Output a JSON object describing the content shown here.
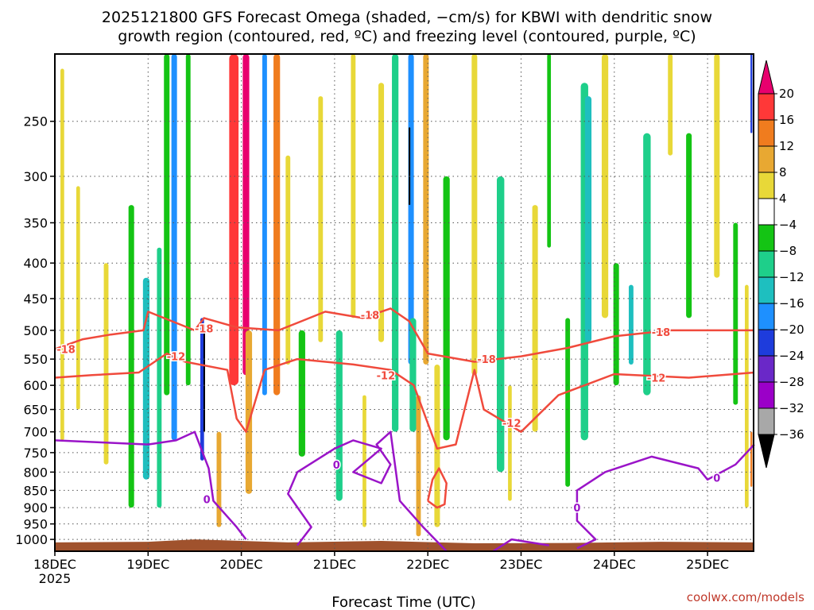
{
  "title_line1": "2025121800 GFS Forecast Omega (shaded, −cm/s) for KBWI with dendritic snow",
  "title_line2": "growth region (contoured, red, ºC) and freezing level (contoured, purple, ºC)",
  "credit": "coolwx.com/models",
  "colors": {
    "dendritic": "#f04a3c",
    "freezing": "#9a14c8",
    "ground": "#a0522d",
    "grid": "#555555"
  },
  "chart_data": {
    "type": "heatmap",
    "xlabel": "Forecast Time (UTC)",
    "x_ticks": [
      {
        "label": "18DEC",
        "sub": "2025",
        "day": 0
      },
      {
        "label": "19DEC",
        "sub": "",
        "day": 1
      },
      {
        "label": "20DEC",
        "sub": "",
        "day": 2
      },
      {
        "label": "21DEC",
        "sub": "",
        "day": 3
      },
      {
        "label": "22DEC",
        "sub": "",
        "day": 4
      },
      {
        "label": "23DEC",
        "sub": "",
        "day": 5
      },
      {
        "label": "24DEC",
        "sub": "",
        "day": 6
      },
      {
        "label": "25DEC",
        "sub": "",
        "day": 7
      }
    ],
    "x_range_days": [
      0,
      7.5
    ],
    "y_ticks": [
      "250",
      "300",
      "350",
      "400",
      "450",
      "500",
      "550",
      "600",
      "650",
      "700",
      "750",
      "800",
      "850",
      "900",
      "950",
      "1000"
    ],
    "y_range_hpa": [
      200,
      1040
    ],
    "y_scale": "log-pressure",
    "grid": "dotted",
    "colorbar": {
      "labels": [
        "20",
        "16",
        "12",
        "8",
        "4",
        "−4",
        "−8",
        "−12",
        "−16",
        "−20",
        "−24",
        "−28",
        "−32",
        "−36"
      ],
      "colors": [
        "#e8006e",
        "#ff3838",
        "#f07c1e",
        "#e8a832",
        "#e8d838",
        "#ffffff",
        "#14c414",
        "#1ecf8a",
        "#1ebfbf",
        "#1e90ff",
        "#1e3cdc",
        "#6a28c8",
        "#9b00c8",
        "#a8a8a8",
        "#000000"
      ]
    },
    "omega_regions": [
      {
        "t": 0.08,
        "dt": 0.04,
        "p1": 210,
        "p2": 720,
        "v": 6
      },
      {
        "t": 0.25,
        "dt": 0.04,
        "p1": 310,
        "p2": 650,
        "v": 5
      },
      {
        "t": 0.55,
        "dt": 0.05,
        "p1": 400,
        "p2": 780,
        "v": 5
      },
      {
        "t": 0.82,
        "dt": 0.06,
        "p1": 330,
        "p2": 900,
        "v": -6
      },
      {
        "t": 0.98,
        "dt": 0.07,
        "p1": 420,
        "p2": 820,
        "v": -14
      },
      {
        "t": 1.12,
        "dt": 0.05,
        "p1": 380,
        "p2": 900,
        "v": -9
      },
      {
        "t": 1.2,
        "dt": 0.06,
        "p1": 200,
        "p2": 620,
        "v": -6
      },
      {
        "t": 1.28,
        "dt": 0.06,
        "p1": 200,
        "p2": 720,
        "v": -18
      },
      {
        "t": 1.43,
        "dt": 0.05,
        "p1": 200,
        "p2": 600,
        "v": -7
      },
      {
        "t": 1.58,
        "dt": 0.04,
        "p1": 480,
        "p2": 770,
        "v": -22
      },
      {
        "t": 1.6,
        "dt": 0.012,
        "p1": 490,
        "p2": 700,
        "v": -40
      },
      {
        "t": 1.76,
        "dt": 0.05,
        "p1": 700,
        "p2": 960,
        "v": 10
      },
      {
        "t": 1.92,
        "dt": 0.1,
        "p1": 200,
        "p2": 600,
        "v": 18
      },
      {
        "t": 2.05,
        "dt": 0.07,
        "p1": 200,
        "p2": 580,
        "v": 22
      },
      {
        "t": 2.08,
        "dt": 0.07,
        "p1": 500,
        "p2": 860,
        "v": 11
      },
      {
        "t": 2.25,
        "dt": 0.05,
        "p1": 200,
        "p2": 620,
        "v": -16
      },
      {
        "t": 2.38,
        "dt": 0.07,
        "p1": 200,
        "p2": 620,
        "v": 12
      },
      {
        "t": 2.5,
        "dt": 0.05,
        "p1": 280,
        "p2": 560,
        "v": 6
      },
      {
        "t": 2.65,
        "dt": 0.07,
        "p1": 500,
        "p2": 760,
        "v": -7
      },
      {
        "t": 2.85,
        "dt": 0.05,
        "p1": 230,
        "p2": 520,
        "v": 5
      },
      {
        "t": 3.05,
        "dt": 0.07,
        "p1": 500,
        "p2": 880,
        "v": -8
      },
      {
        "t": 3.2,
        "dt": 0.05,
        "p1": 200,
        "p2": 480,
        "v": 7
      },
      {
        "t": 3.32,
        "dt": 0.04,
        "p1": 620,
        "p2": 960,
        "v": 5
      },
      {
        "t": 3.5,
        "dt": 0.06,
        "p1": 220,
        "p2": 520,
        "v": 6
      },
      {
        "t": 3.65,
        "dt": 0.07,
        "p1": 200,
        "p2": 700,
        "v": -9
      },
      {
        "t": 3.82,
        "dt": 0.06,
        "p1": 200,
        "p2": 560,
        "v": -18
      },
      {
        "t": 3.8,
        "dt": 0.01,
        "p1": 255,
        "p2": 330,
        "v": -40
      },
      {
        "t": 3.84,
        "dt": 0.07,
        "p1": 480,
        "p2": 700,
        "v": -9
      },
      {
        "t": 3.98,
        "dt": 0.06,
        "p1": 200,
        "p2": 560,
        "v": 8
      },
      {
        "t": 3.9,
        "dt": 0.05,
        "p1": 620,
        "p2": 990,
        "v": 10
      },
      {
        "t": 4.1,
        "dt": 0.06,
        "p1": 560,
        "p2": 960,
        "v": 5
      },
      {
        "t": 4.2,
        "dt": 0.07,
        "p1": 300,
        "p2": 720,
        "v": -7
      },
      {
        "t": 4.5,
        "dt": 0.06,
        "p1": 200,
        "p2": 580,
        "v": 7
      },
      {
        "t": 4.78,
        "dt": 0.08,
        "p1": 300,
        "p2": 800,
        "v": -8
      },
      {
        "t": 4.88,
        "dt": 0.04,
        "p1": 600,
        "p2": 880,
        "v": 6
      },
      {
        "t": 5.15,
        "dt": 0.06,
        "p1": 330,
        "p2": 700,
        "v": 5
      },
      {
        "t": 5.3,
        "dt": 0.04,
        "p1": 200,
        "p2": 380,
        "v": -6
      },
      {
        "t": 5.5,
        "dt": 0.05,
        "p1": 480,
        "p2": 840,
        "v": -7
      },
      {
        "t": 5.68,
        "dt": 0.08,
        "p1": 220,
        "p2": 720,
        "v": -9
      },
      {
        "t": 5.72,
        "dt": 0.07,
        "p1": 230,
        "p2": 520,
        "v": -13
      },
      {
        "t": 5.9,
        "dt": 0.07,
        "p1": 200,
        "p2": 480,
        "v": 6
      },
      {
        "t": 6.02,
        "dt": 0.06,
        "p1": 400,
        "p2": 600,
        "v": -7
      },
      {
        "t": 6.18,
        "dt": 0.05,
        "p1": 430,
        "p2": 560,
        "v": -15
      },
      {
        "t": 6.35,
        "dt": 0.08,
        "p1": 260,
        "p2": 620,
        "v": -8
      },
      {
        "t": 6.6,
        "dt": 0.05,
        "p1": 200,
        "p2": 280,
        "v": 6
      },
      {
        "t": 6.8,
        "dt": 0.06,
        "p1": 260,
        "p2": 480,
        "v": -7
      },
      {
        "t": 7.1,
        "dt": 0.06,
        "p1": 200,
        "p2": 420,
        "v": 6
      },
      {
        "t": 7.3,
        "dt": 0.05,
        "p1": 350,
        "p2": 640,
        "v": -6
      },
      {
        "t": 7.42,
        "dt": 0.04,
        "p1": 430,
        "p2": 900,
        "v": 6
      },
      {
        "t": 7.47,
        "dt": 0.02,
        "p1": 700,
        "p2": 840,
        "v": 12
      },
      {
        "t": 7.47,
        "dt": 0.02,
        "p1": 200,
        "p2": 260,
        "v": -22
      }
    ],
    "contours": [
      {
        "value": "-18",
        "color": "dendritic",
        "points": [
          [
            0,
            532
          ],
          [
            0.3,
            515
          ],
          [
            0.6,
            507
          ],
          [
            0.95,
            500
          ],
          [
            1.0,
            470
          ],
          [
            1.5,
            500
          ],
          [
            1.6,
            480
          ],
          [
            1.95,
            495
          ],
          [
            2.4,
            500
          ],
          [
            2.9,
            470
          ],
          [
            3.3,
            480
          ],
          [
            3.6,
            465
          ],
          [
            3.8,
            485
          ],
          [
            4.0,
            540
          ],
          [
            4.5,
            555
          ],
          [
            5.0,
            545
          ],
          [
            5.5,
            530
          ],
          [
            6.0,
            510
          ],
          [
            6.6,
            500
          ],
          [
            7.5,
            500
          ]
        ],
        "labels": [
          {
            "t": 0.12,
            "p": 532
          },
          {
            "t": 1.6,
            "p": 497
          },
          {
            "t": 3.38,
            "p": 475
          },
          {
            "t": 4.63,
            "p": 550
          },
          {
            "t": 6.5,
            "p": 503
          }
        ]
      },
      {
        "value": "-12",
        "color": "dendritic",
        "points": [
          [
            0,
            585
          ],
          [
            0.4,
            580
          ],
          [
            0.9,
            575
          ],
          [
            1.2,
            540
          ],
          [
            1.4,
            555
          ],
          [
            1.85,
            570
          ],
          [
            1.95,
            670
          ],
          [
            2.05,
            700
          ],
          [
            2.25,
            570
          ],
          [
            2.6,
            550
          ],
          [
            3.2,
            560
          ],
          [
            3.6,
            570
          ],
          [
            3.85,
            600
          ],
          [
            4.1,
            740
          ],
          [
            4.3,
            730
          ],
          [
            4.5,
            570
          ],
          [
            4.6,
            650
          ],
          [
            5.0,
            700
          ],
          [
            5.4,
            620
          ],
          [
            6.0,
            578
          ],
          [
            6.8,
            585
          ],
          [
            7.5,
            575
          ]
        ],
        "labels": [
          {
            "t": 1.3,
            "p": 545
          },
          {
            "t": 3.55,
            "p": 580
          },
          {
            "t": 4.9,
            "p": 680
          },
          {
            "t": 6.45,
            "p": 585
          }
        ]
      },
      {
        "value": "-12",
        "color": "dendritic",
        "points": [
          [
            4.0,
            880
          ],
          [
            4.05,
            820
          ],
          [
            4.12,
            790
          ],
          [
            4.2,
            830
          ],
          [
            4.18,
            890
          ],
          [
            4.1,
            900
          ],
          [
            4.0,
            880
          ]
        ],
        "labels": []
      },
      {
        "value": "0",
        "color": "freezing",
        "points": [
          [
            0,
            720
          ],
          [
            0.5,
            725
          ],
          [
            1.0,
            730
          ],
          [
            1.3,
            720
          ],
          [
            1.5,
            700
          ],
          [
            1.65,
            790
          ],
          [
            1.7,
            880
          ],
          [
            1.95,
            960
          ],
          [
            2.05,
            1000
          ]
        ],
        "labels": [
          {
            "t": 1.63,
            "p": 875
          }
        ]
      },
      {
        "value": "0",
        "color": "freezing",
        "points": [
          [
            2.6,
            1020
          ],
          [
            2.75,
            960
          ],
          [
            2.5,
            860
          ],
          [
            2.6,
            800
          ],
          [
            3.0,
            740
          ],
          [
            3.2,
            720
          ],
          [
            3.5,
            740
          ],
          [
            3.2,
            800
          ],
          [
            3.5,
            830
          ],
          [
            3.6,
            780
          ],
          [
            3.45,
            730
          ],
          [
            3.6,
            700
          ],
          [
            3.7,
            880
          ],
          [
            3.95,
            960
          ],
          [
            4.2,
            1040
          ]
        ],
        "labels": [
          {
            "t": 3.02,
            "p": 780
          }
        ]
      },
      {
        "value": "0",
        "color": "freezing",
        "points": [
          [
            5.6,
            1030
          ],
          [
            5.8,
            1000
          ],
          [
            5.6,
            940
          ],
          [
            5.6,
            850
          ],
          [
            5.9,
            800
          ],
          [
            6.4,
            760
          ],
          [
            6.9,
            790
          ],
          [
            7.0,
            820
          ],
          [
            7.3,
            780
          ],
          [
            7.5,
            730
          ]
        ],
        "labels": [
          {
            "t": 5.6,
            "p": 900
          },
          {
            "t": 7.1,
            "p": 815
          }
        ]
      },
      {
        "value": "0",
        "color": "freezing",
        "points": [
          [
            4.7,
            1040
          ],
          [
            4.9,
            1000
          ],
          [
            5.3,
            1020
          ]
        ],
        "labels": []
      }
    ]
  }
}
